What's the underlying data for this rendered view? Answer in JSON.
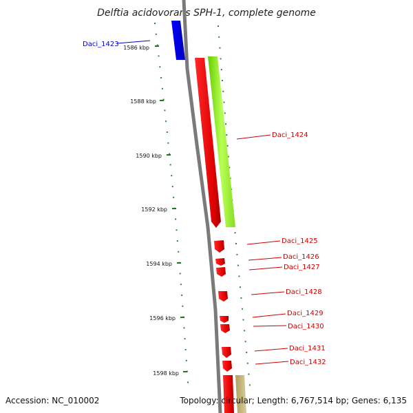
{
  "title": "Delftia acidovorans SPH-1, complete genome",
  "footer": {
    "accession": "Accession: NC_010002",
    "topology": "Topology: circular; Length: 6,767,514 bp; Genes: 6,135"
  },
  "scale_ticks": [
    "1586 kbp",
    "1588 kbp",
    "1590 kbp",
    "1592 kbp",
    "1594 kbp",
    "1596 kbp",
    "1598 kbp"
  ],
  "colors": {
    "backbone": "#808080",
    "reverse_gene": "#0000ee",
    "forward_gene": "#ff0000",
    "forward_label": "#cc0000",
    "extra_track": "#99ff33",
    "extra_track_2": "#c8b878",
    "tick": "#228822"
  },
  "genes": [
    {
      "label": "Daci_1423",
      "strand": "reverse",
      "color": "#0000ee"
    },
    {
      "label": "Daci_1424",
      "strand": "forward",
      "color": "#ff0000"
    },
    {
      "label": "Daci_1425",
      "strand": "forward",
      "color": "#ff0000"
    },
    {
      "label": "Daci_1426",
      "strand": "forward",
      "color": "#ff0000"
    },
    {
      "label": "Daci_1427",
      "strand": "forward",
      "color": "#ff0000"
    },
    {
      "label": "Daci_1428",
      "strand": "forward",
      "color": "#ff0000"
    },
    {
      "label": "Daci_1429",
      "strand": "forward",
      "color": "#ff0000"
    },
    {
      "label": "Daci_1430",
      "strand": "forward",
      "color": "#ff0000"
    },
    {
      "label": "Daci_1431",
      "strand": "forward",
      "color": "#ff0000"
    },
    {
      "label": "Daci_1432",
      "strand": "forward",
      "color": "#ff0000"
    }
  ]
}
